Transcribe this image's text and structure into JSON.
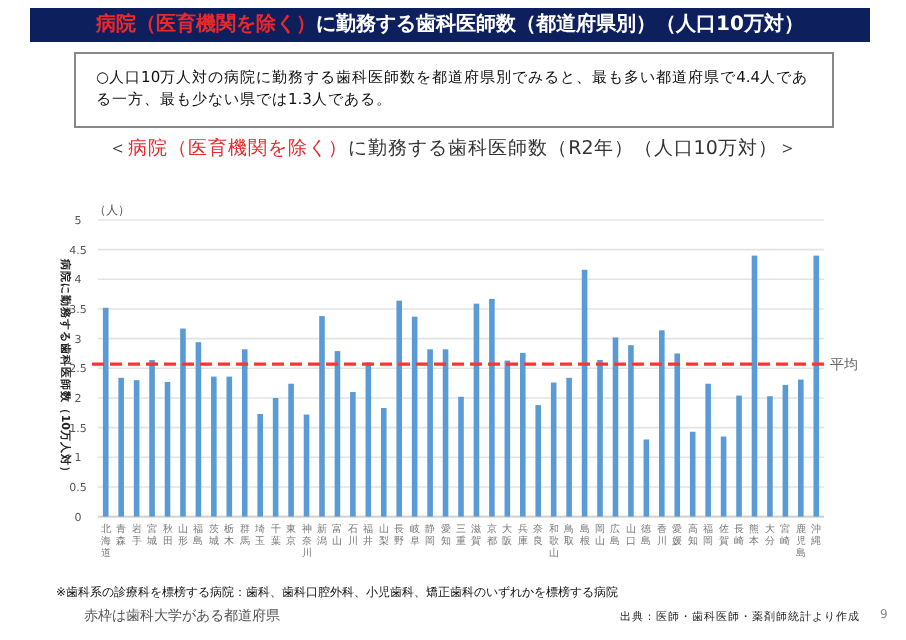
{
  "chart_data": {
    "type": "bar",
    "title": "病院（医育機関を除く）に勤務する歯科医師数（都道府県別）（人口10万対）",
    "subtitle": "＜病院（医育機関を除く）に勤務する歯科医師数（R2年）（人口10万対）＞",
    "ylabel": "病院に勤務する歯科医師数（10万人対）",
    "annotations": [
      "○人口10万人対の病院に勤務する歯科医師数を都道府県別でみると、最も多い都道府県で4.4人である一方、最も少ない県では1.3人である。",
      "（人）",
      "※歯科系の診療科を標榜する病院：歯科、歯科口腔外科、小児歯科、矯正歯科のいずれかを標榜する病院",
      "赤枠は歯科大学がある都道府県",
      "出典：医師・歯科医師・薬剤師統計より作成",
      "9"
    ],
    "categories": [
      "北海道",
      "青森",
      "岩手",
      "宮城",
      "秋田",
      "山形",
      "福島",
      "茨城",
      "栃木",
      "群馬",
      "埼玉",
      "千葉",
      "東京",
      "神奈川",
      "新潟",
      "富山",
      "石川",
      "福井",
      "山梨",
      "長野",
      "岐阜",
      "静岡",
      "愛知",
      "三重",
      "滋賀",
      "京都",
      "大阪",
      "兵庫",
      "奈良",
      "和歌山",
      "鳥取",
      "島根",
      "岡山",
      "広島",
      "山口",
      "徳島",
      "香川",
      "愛媛",
      "高知",
      "福岡",
      "佐賀",
      "長崎",
      "熊本",
      "大分",
      "宮崎",
      "鹿児島",
      "沖縄"
    ],
    "values": [
      3.52,
      2.34,
      2.3,
      2.64,
      2.27,
      3.17,
      2.94,
      2.36,
      2.36,
      2.82,
      1.73,
      2.0,
      2.24,
      1.72,
      3.38,
      2.79,
      2.1,
      2.6,
      1.83,
      3.64,
      3.37,
      2.82,
      2.82,
      2.02,
      3.59,
      3.67,
      2.63,
      2.76,
      1.88,
      2.26,
      2.34,
      4.16,
      2.64,
      3.02,
      2.89,
      1.3,
      3.14,
      2.75,
      1.43,
      2.24,
      1.35,
      2.04,
      4.4,
      2.03,
      2.22,
      2.31,
      4.4
    ],
    "color": "#5b9bd5",
    "ylim": [
      0,
      5
    ],
    "yticks": [
      0,
      0.5,
      1,
      1.5,
      2,
      2.5,
      3,
      3.5,
      4,
      4.5,
      5
    ],
    "grid": "y",
    "ref_lines": [
      {
        "axis": "y",
        "value": 2.57,
        "label": "平均",
        "color": "#ff3333",
        "line_style": "dashed"
      }
    ]
  }
}
